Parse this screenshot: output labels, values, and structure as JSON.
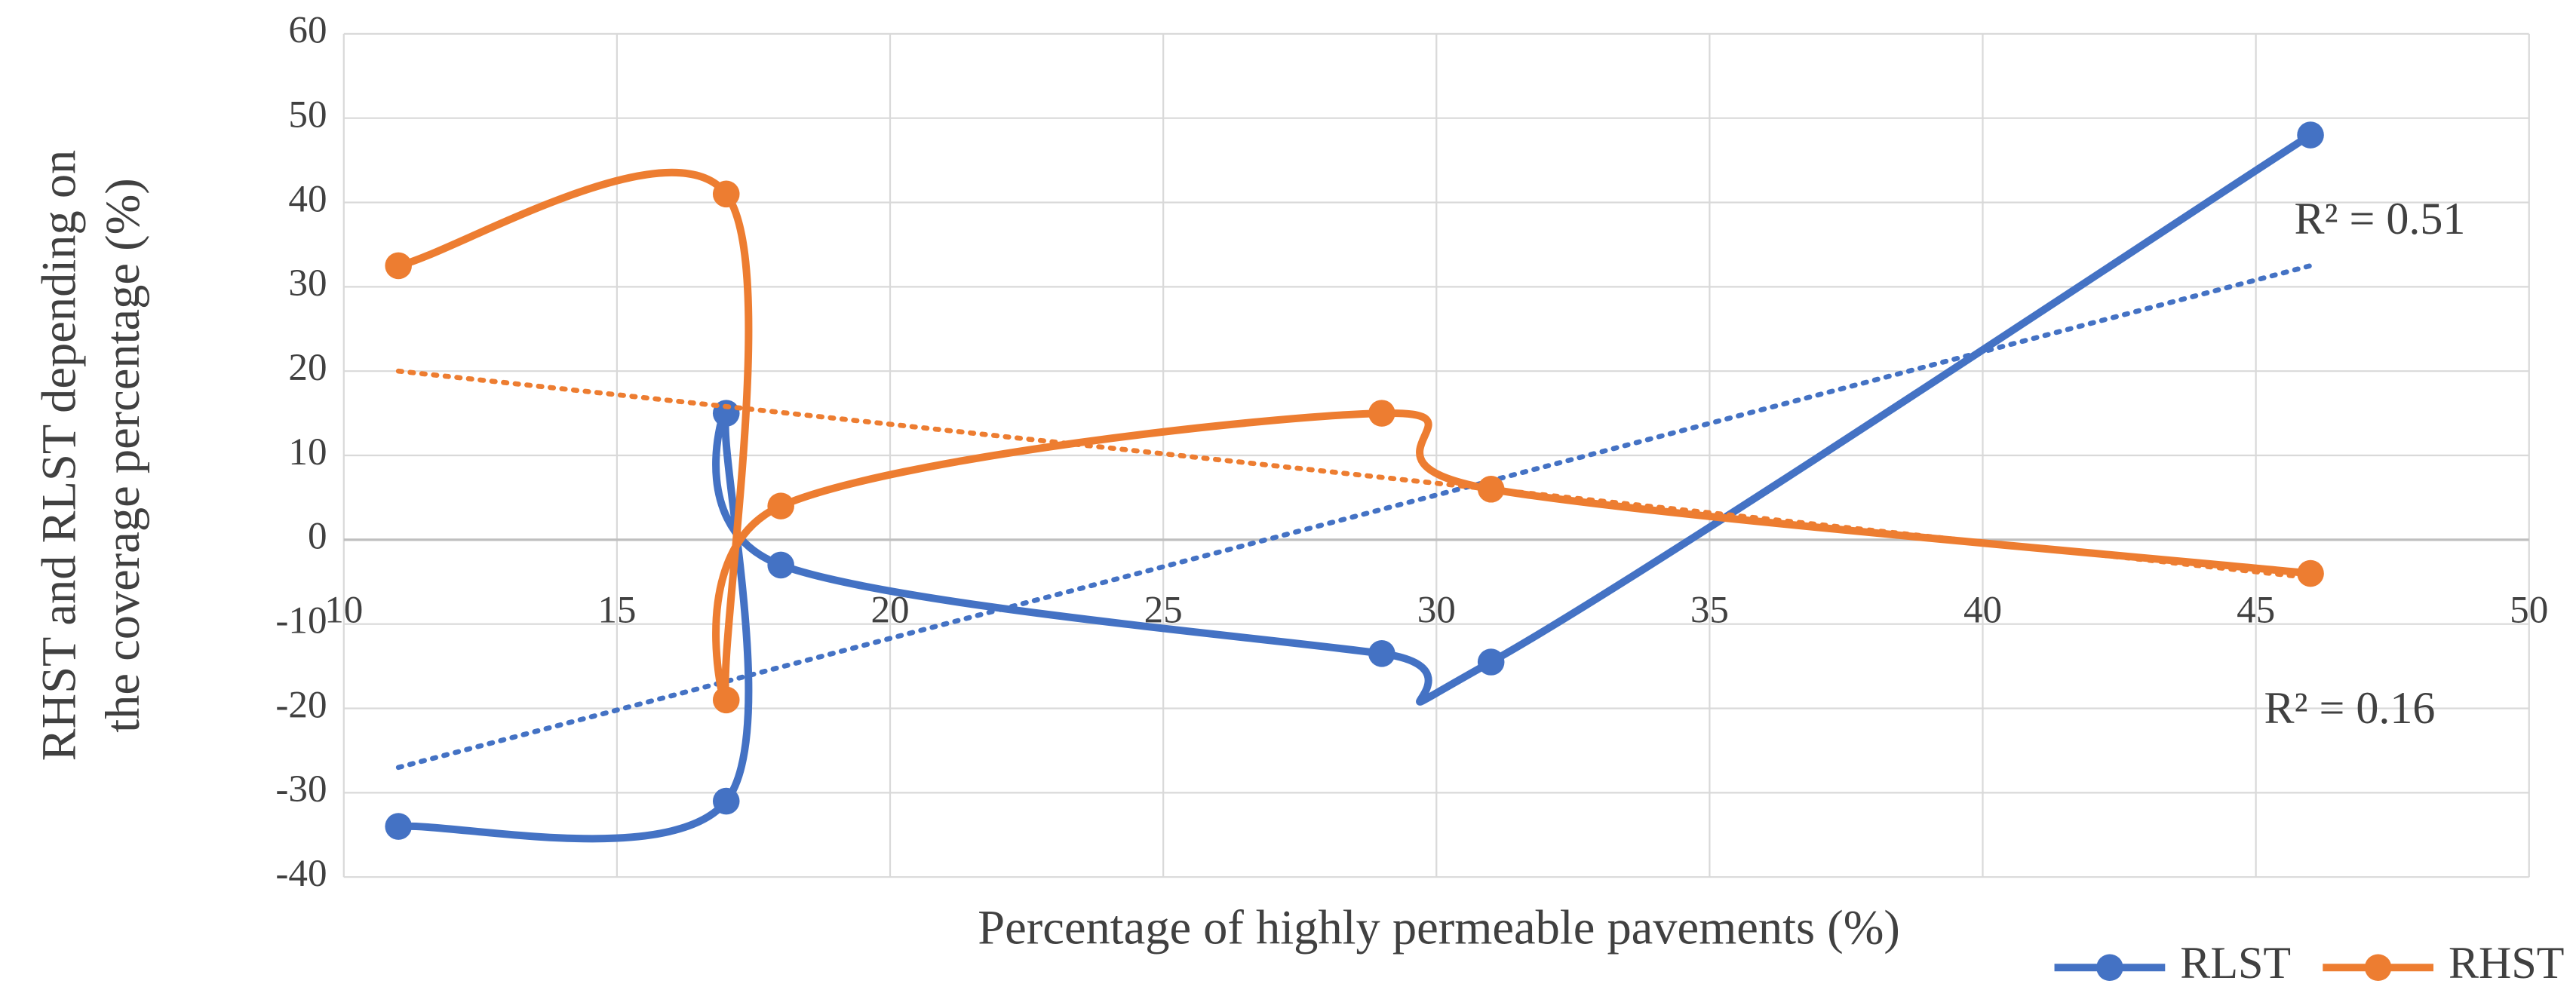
{
  "chart_data": {
    "type": "scatter",
    "x_label": "Percentage of highly permeable pavements (%)",
    "y_label": [
      "RHST and RLST depending on",
      "the coverage percentage (%)"
    ],
    "xlim": [
      10,
      50
    ],
    "xticks": [
      10,
      15,
      20,
      25,
      30,
      35,
      40,
      45,
      50
    ],
    "ylim": [
      -40,
      60
    ],
    "yticks": [
      -40,
      -30,
      -20,
      -10,
      0,
      10,
      20,
      30,
      40,
      50,
      60
    ],
    "grid": true,
    "smooth": true,
    "legend": "bottom-right",
    "series": [
      {
        "name": "RLST",
        "color": "#4472c4",
        "x": [
          11,
          17,
          17,
          18,
          29,
          31,
          46
        ],
        "values": [
          -34,
          -31,
          15,
          -3,
          -13.5,
          -14.5,
          48
        ],
        "trendline": {
          "x": [
            11,
            46
          ],
          "values": [
            -27,
            32.5
          ],
          "label": "R² = 0.51"
        }
      },
      {
        "name": "RHST",
        "color": "#ed7d31",
        "x": [
          11,
          17,
          17,
          18,
          29,
          31,
          46
        ],
        "values": [
          32.5,
          41,
          -19,
          4,
          15,
          6,
          -4
        ],
        "trendline": {
          "x": [
            11,
            46
          ],
          "values": [
            20,
            -4.5
          ],
          "label": "R² = 0.16"
        }
      }
    ]
  }
}
